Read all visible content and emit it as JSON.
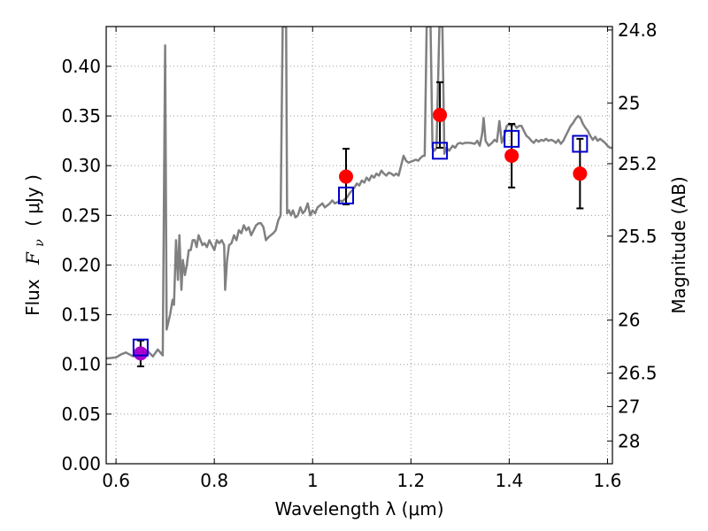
{
  "chart_data": {
    "type": "scatter",
    "title": "",
    "xlabel": "Wavelength  λ (μm)",
    "ylabel": "Flux  F_ν  ( μJy )",
    "ylabel_parts": {
      "prefix": "Flux",
      "symbol": "F",
      "subscript": "ν",
      "unit": "( μJy )"
    },
    "y2label": "Magnitude (AB)",
    "xlim": [
      0.58,
      1.61
    ],
    "ylim": [
      0.0,
      0.44
    ],
    "grid": true,
    "x_ticks": [
      0.6,
      0.8,
      1.0,
      1.2,
      1.4,
      1.6
    ],
    "x_tick_labels": [
      "0.6",
      "0.8",
      "1",
      "1.2",
      "1.4",
      "1.6"
    ],
    "y_ticks": [
      0.0,
      0.05,
      0.1,
      0.15,
      0.2,
      0.25,
      0.3,
      0.35,
      0.4
    ],
    "y_tick_labels": [
      "0.00",
      "0.05",
      "0.10",
      "0.15",
      "0.20",
      "0.25",
      "0.30",
      "0.35",
      "0.40"
    ],
    "mag_ticks": [
      24.8,
      25,
      25.2,
      25.5,
      26,
      26.5,
      27,
      28
    ],
    "mag_tick_labels": [
      "24.8",
      "25",
      "25.2",
      "25.5",
      "26",
      "26.5",
      "27",
      "28"
    ],
    "colors": {
      "model": "#808080",
      "observed": "#ff0000",
      "observed_blend": "#aa00cc",
      "model_photometry": "#0000cc",
      "errorbar": "#000000",
      "grid": "#999999"
    },
    "series": [
      {
        "kind": "line",
        "points": [
          [
            0.58,
            0.106
          ],
          [
            0.6,
            0.107
          ],
          [
            0.61,
            0.11
          ],
          [
            0.62,
            0.112
          ],
          [
            0.635,
            0.108
          ],
          [
            0.645,
            0.112
          ],
          [
            0.655,
            0.11
          ],
          [
            0.665,
            0.113
          ],
          [
            0.675,
            0.108
          ],
          [
            0.685,
            0.115
          ],
          [
            0.695,
            0.109
          ],
          [
            0.7,
            0.421
          ],
          [
            0.703,
            0.135
          ],
          [
            0.71,
            0.15
          ],
          [
            0.715,
            0.165
          ],
          [
            0.718,
            0.16
          ],
          [
            0.722,
            0.225
          ],
          [
            0.726,
            0.185
          ],
          [
            0.729,
            0.23
          ],
          [
            0.733,
            0.175
          ],
          [
            0.736,
            0.205
          ],
          [
            0.74,
            0.19
          ],
          [
            0.744,
            0.2
          ],
          [
            0.748,
            0.215
          ],
          [
            0.752,
            0.215
          ],
          [
            0.756,
            0.225
          ],
          [
            0.76,
            0.225
          ],
          [
            0.764,
            0.218
          ],
          [
            0.768,
            0.23
          ],
          [
            0.772,
            0.225
          ],
          [
            0.776,
            0.22
          ],
          [
            0.78,
            0.222
          ],
          [
            0.785,
            0.218
          ],
          [
            0.79,
            0.225
          ],
          [
            0.795,
            0.22
          ],
          [
            0.8,
            0.215
          ],
          [
            0.805,
            0.225
          ],
          [
            0.81,
            0.222
          ],
          [
            0.815,
            0.225
          ],
          [
            0.82,
            0.22
          ],
          [
            0.822,
            0.175
          ],
          [
            0.826,
            0.205
          ],
          [
            0.83,
            0.22
          ],
          [
            0.835,
            0.222
          ],
          [
            0.84,
            0.23
          ],
          [
            0.845,
            0.225
          ],
          [
            0.85,
            0.235
          ],
          [
            0.855,
            0.232
          ],
          [
            0.86,
            0.24
          ],
          [
            0.865,
            0.235
          ],
          [
            0.87,
            0.238
          ],
          [
            0.875,
            0.23
          ],
          [
            0.88,
            0.235
          ],
          [
            0.885,
            0.24
          ],
          [
            0.89,
            0.242
          ],
          [
            0.895,
            0.242
          ],
          [
            0.9,
            0.238
          ],
          [
            0.905,
            0.225
          ],
          [
            0.91,
            0.228
          ],
          [
            0.915,
            0.23
          ],
          [
            0.92,
            0.232
          ],
          [
            0.925,
            0.235
          ],
          [
            0.93,
            0.245
          ],
          [
            0.935,
            0.25
          ],
          [
            0.939,
            0.44
          ],
          [
            0.942,
            0.44
          ],
          [
            0.946,
            0.44
          ],
          [
            0.948,
            0.252
          ],
          [
            0.952,
            0.255
          ],
          [
            0.956,
            0.25
          ],
          [
            0.96,
            0.255
          ],
          [
            0.965,
            0.248
          ],
          [
            0.97,
            0.25
          ],
          [
            0.975,
            0.258
          ],
          [
            0.98,
            0.252
          ],
          [
            0.985,
            0.255
          ],
          [
            0.99,
            0.262
          ],
          [
            0.995,
            0.25
          ],
          [
            1.0,
            0.255
          ],
          [
            1.005,
            0.252
          ],
          [
            1.01,
            0.258
          ],
          [
            1.015,
            0.26
          ],
          [
            1.02,
            0.262
          ],
          [
            1.025,
            0.258
          ],
          [
            1.03,
            0.26
          ],
          [
            1.035,
            0.262
          ],
          [
            1.04,
            0.265
          ],
          [
            1.045,
            0.262
          ],
          [
            1.05,
            0.263
          ],
          [
            1.055,
            0.265
          ],
          [
            1.06,
            0.264
          ],
          [
            1.065,
            0.266
          ],
          [
            1.07,
            0.268
          ],
          [
            1.075,
            0.272
          ],
          [
            1.08,
            0.275
          ],
          [
            1.085,
            0.278
          ],
          [
            1.09,
            0.282
          ],
          [
            1.095,
            0.28
          ],
          [
            1.1,
            0.285
          ],
          [
            1.105,
            0.283
          ],
          [
            1.11,
            0.288
          ],
          [
            1.115,
            0.285
          ],
          [
            1.12,
            0.29
          ],
          [
            1.125,
            0.288
          ],
          [
            1.13,
            0.292
          ],
          [
            1.135,
            0.29
          ],
          [
            1.14,
            0.295
          ],
          [
            1.145,
            0.292
          ],
          [
            1.15,
            0.29
          ],
          [
            1.155,
            0.293
          ],
          [
            1.16,
            0.292
          ],
          [
            1.165,
            0.29
          ],
          [
            1.17,
            0.292
          ],
          [
            1.175,
            0.29
          ],
          [
            1.18,
            0.3
          ],
          [
            1.185,
            0.31
          ],
          [
            1.19,
            0.305
          ],
          [
            1.195,
            0.303
          ],
          [
            1.2,
            0.304
          ],
          [
            1.205,
            0.305
          ],
          [
            1.21,
            0.306
          ],
          [
            1.215,
            0.305
          ],
          [
            1.22,
            0.308
          ],
          [
            1.225,
            0.31
          ],
          [
            1.228,
            0.31
          ],
          [
            1.232,
            0.44
          ],
          [
            1.24,
            0.44
          ],
          [
            1.244,
            0.318
          ],
          [
            1.248,
            0.315
          ],
          [
            1.252,
            0.318
          ],
          [
            1.258,
            0.44
          ],
          [
            1.264,
            0.44
          ],
          [
            1.268,
            0.312
          ],
          [
            1.272,
            0.318
          ],
          [
            1.278,
            0.315
          ],
          [
            1.285,
            0.32
          ],
          [
            1.29,
            0.318
          ],
          [
            1.295,
            0.322
          ],
          [
            1.3,
            0.323
          ],
          [
            1.305,
            0.322
          ],
          [
            1.31,
            0.323
          ],
          [
            1.32,
            0.323
          ],
          [
            1.33,
            0.322
          ],
          [
            1.335,
            0.325
          ],
          [
            1.34,
            0.32
          ],
          [
            1.345,
            0.332
          ],
          [
            1.348,
            0.348
          ],
          [
            1.352,
            0.325
          ],
          [
            1.358,
            0.32
          ],
          [
            1.365,
            0.323
          ],
          [
            1.37,
            0.326
          ],
          [
            1.375,
            0.324
          ],
          [
            1.38,
            0.345
          ],
          [
            1.385,
            0.323
          ],
          [
            1.39,
            0.33
          ],
          [
            1.395,
            0.34
          ],
          [
            1.4,
            0.342
          ],
          [
            1.405,
            0.34
          ],
          [
            1.41,
            0.342
          ],
          [
            1.415,
            0.338
          ],
          [
            1.42,
            0.34
          ],
          [
            1.425,
            0.34
          ],
          [
            1.43,
            0.335
          ],
          [
            1.435,
            0.33
          ],
          [
            1.44,
            0.328
          ],
          [
            1.445,
            0.325
          ],
          [
            1.45,
            0.323
          ],
          [
            1.455,
            0.326
          ],
          [
            1.46,
            0.324
          ],
          [
            1.465,
            0.326
          ],
          [
            1.47,
            0.325
          ],
          [
            1.475,
            0.327
          ],
          [
            1.48,
            0.325
          ],
          [
            1.485,
            0.326
          ],
          [
            1.49,
            0.325
          ],
          [
            1.495,
            0.323
          ],
          [
            1.5,
            0.326
          ],
          [
            1.505,
            0.322
          ],
          [
            1.51,
            0.325
          ],
          [
            1.515,
            0.33
          ],
          [
            1.52,
            0.335
          ],
          [
            1.525,
            0.34
          ],
          [
            1.53,
            0.343
          ],
          [
            1.535,
            0.347
          ],
          [
            1.54,
            0.35
          ],
          [
            1.545,
            0.348
          ],
          [
            1.55,
            0.342
          ],
          [
            1.555,
            0.338
          ],
          [
            1.56,
            0.335
          ],
          [
            1.565,
            0.33
          ],
          [
            1.57,
            0.326
          ],
          [
            1.575,
            0.329
          ],
          [
            1.58,
            0.325
          ],
          [
            1.585,
            0.327
          ],
          [
            1.59,
            0.325
          ],
          [
            1.595,
            0.323
          ],
          [
            1.6,
            0.32
          ],
          [
            1.605,
            0.318
          ],
          [
            1.61,
            0.318
          ]
        ]
      },
      {
        "kind": "points-with-errors",
        "points": [
          {
            "x": 0.65,
            "y": 0.111,
            "yerr": 0.013,
            "color_key": "observed_blend"
          },
          {
            "x": 1.068,
            "y": 0.289,
            "yerr": 0.028,
            "color_key": "observed"
          },
          {
            "x": 1.259,
            "y": 0.351,
            "yerr": 0.033,
            "color_key": "observed"
          },
          {
            "x": 1.405,
            "y": 0.31,
            "yerr": 0.032,
            "color_key": "observed"
          },
          {
            "x": 1.544,
            "y": 0.292,
            "yerr": 0.035,
            "color_key": "observed"
          }
        ]
      },
      {
        "kind": "open-squares",
        "points": [
          {
            "x": 0.65,
            "y": 0.117
          },
          {
            "x": 1.068,
            "y": 0.27
          },
          {
            "x": 1.259,
            "y": 0.315
          },
          {
            "x": 1.405,
            "y": 0.327
          },
          {
            "x": 1.544,
            "y": 0.322
          }
        ]
      }
    ]
  }
}
